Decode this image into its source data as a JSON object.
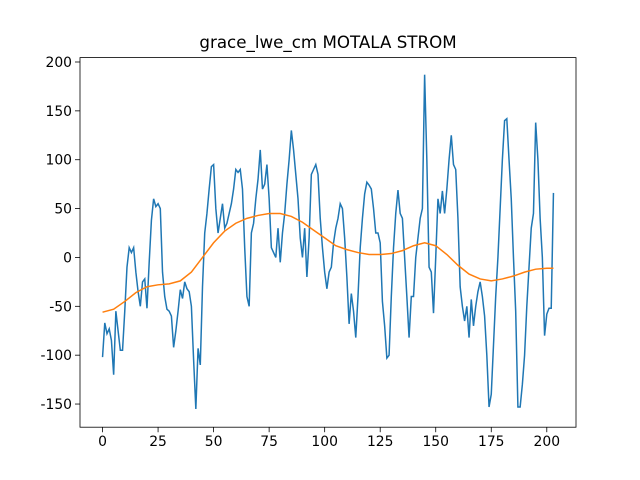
{
  "chart_data": {
    "type": "line",
    "title": "grace_lwe_cm MOTALA STROM",
    "xlim": [
      -10.15,
      213.15
    ],
    "xticks": [
      0,
      25,
      50,
      75,
      100,
      125,
      150,
      175,
      200
    ],
    "ylim": [
      -173.7,
      204.5
    ],
    "yticks": [
      -150,
      -100,
      -50,
      0,
      50,
      100,
      150,
      200
    ],
    "series": [
      {
        "color": "#1f77b4",
        "x": [
          0,
          1,
          2,
          3,
          4,
          5,
          6,
          7,
          8,
          9,
          10,
          11,
          12,
          13,
          14,
          15,
          16,
          17,
          18,
          19,
          20,
          21,
          22,
          23,
          24,
          25,
          26,
          27,
          28,
          29,
          30,
          31,
          32,
          33,
          34,
          35,
          36,
          37,
          38,
          39,
          40,
          41,
          42,
          43,
          44,
          45,
          46,
          47,
          48,
          49,
          50,
          51,
          52,
          53,
          54,
          55,
          56,
          57,
          58,
          59,
          60,
          61,
          62,
          63,
          64,
          65,
          66,
          67,
          68,
          69,
          70,
          71,
          72,
          73,
          74,
          75,
          76,
          77,
          78,
          79,
          80,
          81,
          82,
          83,
          84,
          85,
          86,
          87,
          88,
          89,
          90,
          91,
          92,
          93,
          94,
          95,
          96,
          97,
          98,
          99,
          100,
          101,
          102,
          103,
          104,
          105,
          106,
          107,
          108,
          109,
          110,
          111,
          112,
          113,
          114,
          115,
          116,
          117,
          118,
          119,
          120,
          121,
          122,
          123,
          124,
          125,
          126,
          127,
          128,
          129,
          130,
          131,
          132,
          133,
          134,
          135,
          136,
          137,
          138,
          139,
          140,
          141,
          142,
          143,
          144,
          145,
          146,
          147,
          148,
          149,
          150,
          151,
          152,
          153,
          154,
          155,
          156,
          157,
          158,
          159,
          160,
          161,
          162,
          163,
          164,
          165,
          166,
          167,
          168,
          169,
          170,
          171,
          172,
          173,
          174,
          175,
          176,
          177,
          178,
          179,
          180,
          181,
          182,
          183,
          184,
          185,
          186,
          187,
          188,
          189,
          190,
          191,
          192,
          193,
          194,
          195,
          196,
          197,
          198,
          199,
          200,
          201,
          202,
          203
        ],
        "values": [
          -102,
          -67,
          -78,
          -73,
          -85,
          -120,
          -55,
          -75,
          -95,
          -95,
          -55,
          -10,
          10,
          5,
          10,
          -15,
          -35,
          -50,
          -25,
          -22,
          -52,
          -5,
          38,
          60,
          52,
          55,
          50,
          -15,
          -40,
          -53,
          -55,
          -60,
          -92,
          -75,
          -55,
          -33,
          -42,
          -25,
          -32,
          -35,
          -50,
          -105,
          -155,
          -93,
          -110,
          -30,
          25,
          45,
          70,
          93,
          95,
          50,
          25,
          40,
          55,
          30,
          35,
          45,
          55,
          70,
          90,
          87,
          90,
          70,
          10,
          -40,
          -50,
          25,
          35,
          60,
          80,
          110,
          70,
          75,
          95,
          60,
          10,
          5,
          0,
          30,
          -5,
          25,
          45,
          75,
          100,
          130,
          110,
          85,
          60,
          20,
          0,
          30,
          -20,
          20,
          85,
          90,
          95,
          85,
          40,
          10,
          -15,
          -32,
          -15,
          -10,
          15,
          30,
          40,
          55,
          50,
          20,
          -20,
          -68,
          -37,
          -55,
          -82,
          -40,
          10,
          40,
          65,
          77,
          74,
          70,
          50,
          25,
          25,
          15,
          -45,
          -70,
          -103,
          -100,
          -40,
          10,
          45,
          69,
          45,
          40,
          0,
          -40,
          -82,
          -40,
          -40,
          0,
          20,
          40,
          50,
          187,
          100,
          -10,
          -15,
          -57,
          0,
          60,
          45,
          68,
          45,
          70,
          100,
          125,
          95,
          90,
          40,
          -30,
          -50,
          -65,
          -50,
          -82,
          -43,
          -70,
          -50,
          -35,
          -25,
          -40,
          -60,
          -100,
          -153,
          -140,
          -90,
          -40,
          0,
          50,
          100,
          140,
          142,
          100,
          60,
          0,
          -55,
          -153,
          -153,
          -130,
          -100,
          -50,
          -10,
          30,
          45,
          138,
          100,
          40,
          0,
          -80,
          -58,
          -52,
          -52,
          66
        ]
      },
      {
        "color": "#ff7f0e",
        "x": [
          0,
          5,
          10,
          15,
          20,
          25,
          30,
          35,
          40,
          45,
          50,
          55,
          60,
          65,
          70,
          75,
          80,
          85,
          90,
          95,
          100,
          105,
          110,
          115,
          120,
          125,
          130,
          135,
          140,
          145,
          150,
          155,
          160,
          165,
          170,
          175,
          180,
          185,
          190,
          195,
          200,
          203
        ],
        "values": [
          -56,
          -53,
          -45,
          -36,
          -30,
          -28,
          -27,
          -24,
          -15,
          0,
          15,
          27,
          35,
          40,
          43,
          45,
          45,
          42,
          36,
          28,
          20,
          12,
          8,
          5,
          3,
          3,
          4,
          7,
          12,
          15,
          12,
          3,
          -8,
          -17,
          -22,
          -24,
          -22,
          -19,
          -15,
          -12,
          -11,
          -11
        ]
      }
    ]
  }
}
